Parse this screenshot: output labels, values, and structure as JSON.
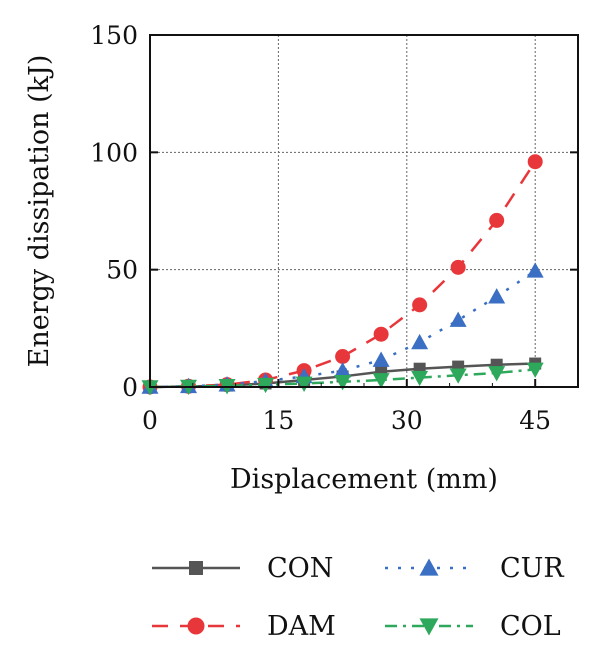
{
  "chart_data": {
    "type": "line",
    "xlabel": "Displacement (mm)",
    "ylabel": "Energy dissipation (kJ)",
    "xlim": [
      0,
      50
    ],
    "ylim": [
      0,
      150
    ],
    "xticks": [
      0,
      15,
      30,
      45
    ],
    "yticks": [
      0,
      50,
      100,
      150
    ],
    "grid": true,
    "legend_position": "bottom",
    "x": [
      0,
      4.5,
      9,
      13.5,
      18,
      22.5,
      27,
      31.5,
      36,
      40.5,
      45
    ],
    "series": [
      {
        "name": "CON",
        "color": "#555555",
        "marker": "square",
        "dash": "solid",
        "values": [
          0,
          0.2,
          0.6,
          1.5,
          3,
          4.5,
          6.5,
          7.8,
          8.7,
          9.5,
          10
        ]
      },
      {
        "name": "DAM",
        "color": "#e8373b",
        "marker": "circle",
        "dash": "dashed",
        "values": [
          0,
          0.3,
          1,
          3,
          7,
          13,
          22.5,
          35,
          51,
          71,
          96
        ]
      },
      {
        "name": "CUR",
        "color": "#3a6fc4",
        "marker": "triangle-up",
        "dash": "dotted",
        "values": [
          0,
          0.3,
          1,
          2.5,
          4.5,
          7,
          11.5,
          19,
          28.5,
          38.5,
          49.5
        ]
      },
      {
        "name": "COL",
        "color": "#2ea85b",
        "marker": "triangle-down",
        "dash": "dashdot",
        "values": [
          0,
          0.2,
          0.5,
          1,
          1.5,
          2.2,
          3,
          4,
          5,
          6,
          7.5
        ]
      }
    ]
  }
}
